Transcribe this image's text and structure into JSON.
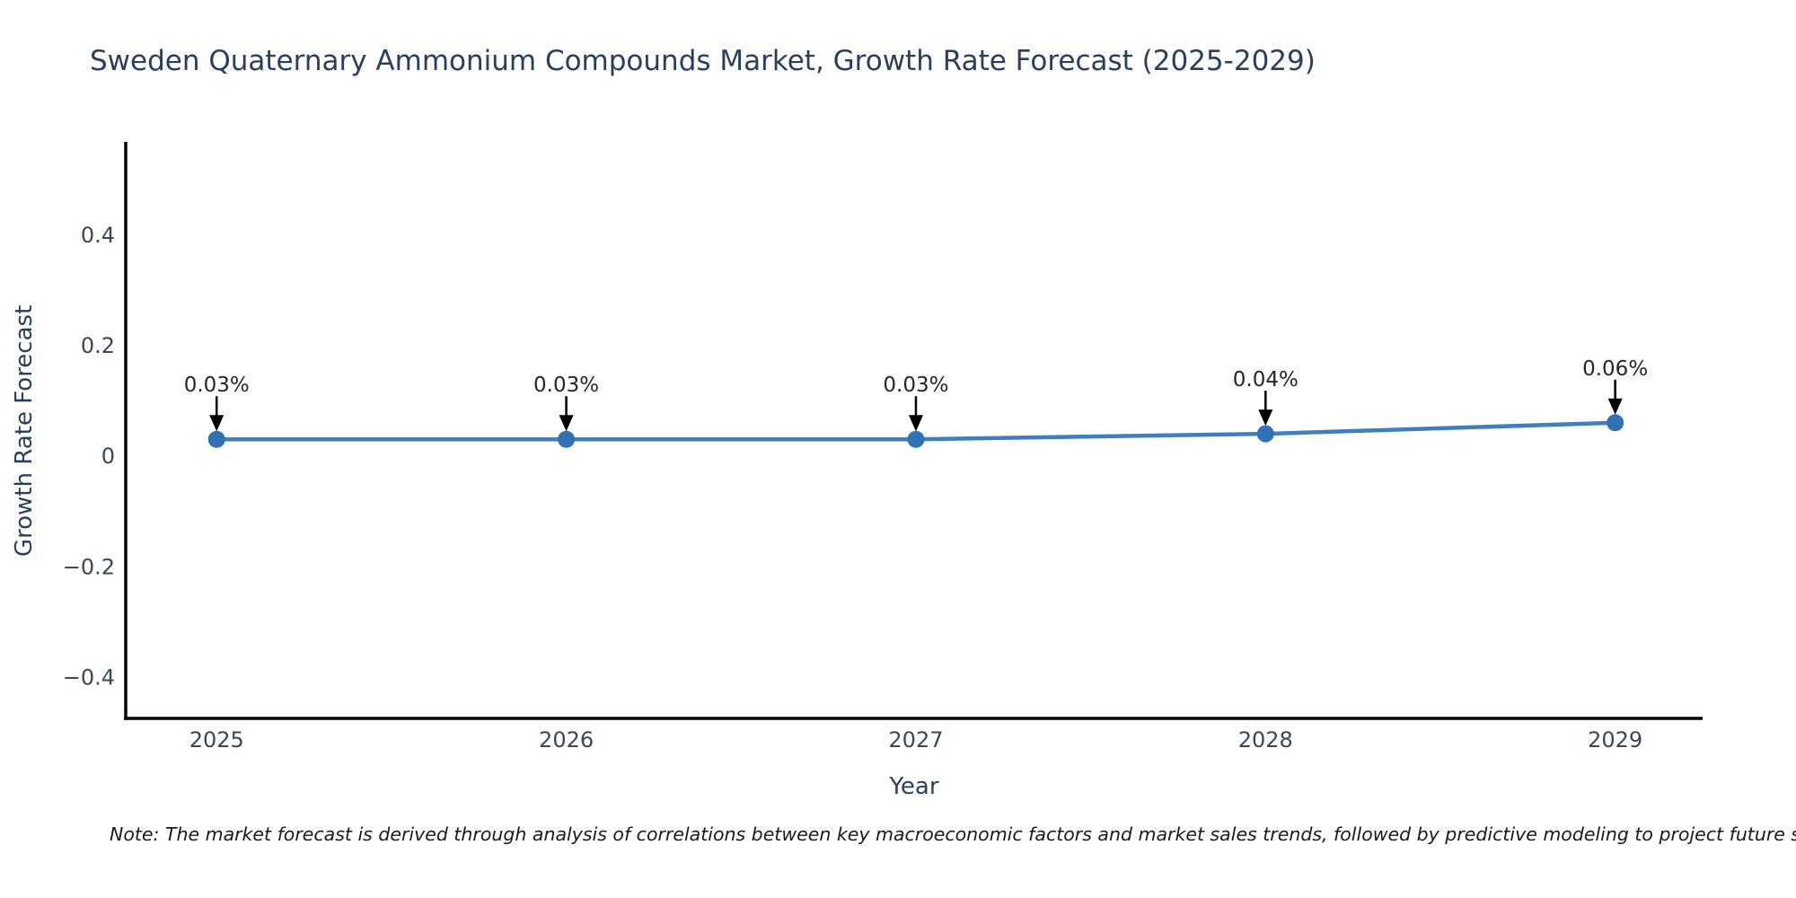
{
  "chart": {
    "title": "Sweden Quaternary Ammonium Compounds Market, Growth Rate Forecast (2025-2029)",
    "xlabel": "Year",
    "ylabel": "Growth Rate Forecast",
    "note": "Note: The market forecast is derived through analysis of correlations between key macroeconomic factors and market sales trends, followed by predictive modeling to project future sales."
  },
  "chart_data": {
    "type": "line",
    "title": "Sweden Quaternary Ammonium Compounds Market, Growth Rate Forecast (2025-2029)",
    "xlabel": "Year",
    "ylabel": "Growth Rate Forecast",
    "x": [
      2025,
      2026,
      2027,
      2028,
      2029
    ],
    "y": [
      0.03,
      0.03,
      0.03,
      0.04,
      0.06
    ],
    "point_labels": [
      "0.03%",
      "0.03%",
      "0.03%",
      "0.04%",
      "0.06%"
    ],
    "xtick_values": [
      2025,
      2026,
      2027,
      2028,
      2029
    ],
    "xtick_labels": [
      "2025",
      "2026",
      "2027",
      "2028",
      "2029"
    ],
    "ytick_values": [
      -0.4,
      -0.2,
      0,
      0.2,
      0.4
    ],
    "ytick_labels": [
      "−0.4",
      "−0.2",
      "0",
      "0.2",
      "0.4"
    ],
    "xlim": [
      2024.74,
      2029.25
    ],
    "ylim": [
      -0.475,
      0.565
    ],
    "grid": false,
    "legend": false,
    "colors": {
      "line": "#3f7fbf",
      "marker": "#3072b2",
      "annotation_text": "#262626",
      "annotation_arrow": "#000000",
      "axis_spine": "#000000",
      "tick_label": "#3b4656",
      "title": "#2a3f5f",
      "background": "#ffffff"
    }
  }
}
